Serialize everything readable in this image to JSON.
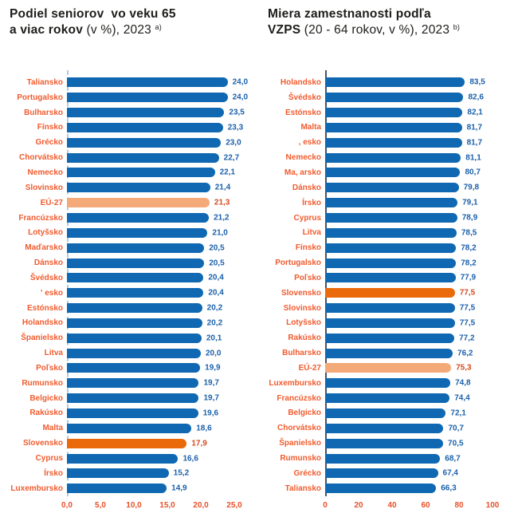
{
  "colors": {
    "bar_blue": "#0F68B1",
    "bar_eu": "#F4A978",
    "bar_sk": "#EA690B",
    "value_blue": "#1B60AA",
    "value_accent": "#D44A1F",
    "label_orange": "#F15B2E",
    "tick_orange": "#E8512B",
    "axis_line_left": "#AECBE8",
    "axis_line_right": "#44546A",
    "title_dark": "#1D1D1B"
  },
  "chart_data": [
    {
      "type": "bar",
      "orientation": "horizontal",
      "title": {
        "bold1": "Podiel seniorov  vo veku 65",
        "bold2": "a viac rokov",
        "normal": " (v %), 2023 ",
        "sup": "a)"
      },
      "title_text": "Podiel seniorov vo veku 65 a viac rokov (v %), 2023 a)",
      "xlim": [
        0,
        25
      ],
      "x_ticks": [
        "0,0",
        "5,0",
        "10,0",
        "15,0",
        "20,0",
        "25,0"
      ],
      "axis_line_style": "dashed",
      "legend": "none",
      "grid": "off",
      "rows": [
        {
          "label": "Taliansko",
          "value": 24.0,
          "display": "24,0",
          "type": "normal"
        },
        {
          "label": "Portugalsko",
          "value": 24.0,
          "display": "24,0",
          "type": "normal"
        },
        {
          "label": "Bulharsko",
          "value": 23.5,
          "display": "23,5",
          "type": "normal"
        },
        {
          "label": "Fínsko",
          "value": 23.3,
          "display": "23,3",
          "type": "normal"
        },
        {
          "label": "Grécko",
          "value": 23.0,
          "display": "23,0",
          "type": "normal"
        },
        {
          "label": "Chorvátsko",
          "value": 22.7,
          "display": "22,7",
          "type": "normal"
        },
        {
          "label": "Nemecko",
          "value": 22.1,
          "display": "22,1",
          "type": "normal"
        },
        {
          "label": "Slovinsko",
          "value": 21.4,
          "display": "21,4",
          "type": "normal"
        },
        {
          "label": "EÚ-27",
          "value": 21.3,
          "display": "21,3",
          "type": "eu"
        },
        {
          "label": "Francúzsko",
          "value": 21.2,
          "display": "21,2",
          "type": "normal"
        },
        {
          "label": "Lotyšsko",
          "value": 21.0,
          "display": "21,0",
          "type": "normal"
        },
        {
          "label": "Maďarsko",
          "value": 20.5,
          "display": "20,5",
          "type": "normal"
        },
        {
          "label": "Dánsko",
          "value": 20.5,
          "display": "20,5",
          "type": "normal"
        },
        {
          "label": "Švédsko",
          "value": 20.4,
          "display": "20,4",
          "type": "normal"
        },
        {
          "label": "' esko",
          "value": 20.4,
          "display": "20,4",
          "type": "normal"
        },
        {
          "label": "Estónsko",
          "value": 20.2,
          "display": "20,2",
          "type": "normal"
        },
        {
          "label": "Holandsko",
          "value": 20.2,
          "display": "20,2",
          "type": "normal"
        },
        {
          "label": "Španielsko",
          "value": 20.1,
          "display": "20,1",
          "type": "normal"
        },
        {
          "label": "Litva",
          "value": 20.0,
          "display": "20,0",
          "type": "normal"
        },
        {
          "label": "Poľsko",
          "value": 19.9,
          "display": "19,9",
          "type": "normal"
        },
        {
          "label": "Rumunsko",
          "value": 19.7,
          "display": "19,7",
          "type": "normal"
        },
        {
          "label": "Belgicko",
          "value": 19.7,
          "display": "19,7",
          "type": "normal"
        },
        {
          "label": "Rakúsko",
          "value": 19.6,
          "display": "19,6",
          "type": "normal"
        },
        {
          "label": "Malta",
          "value": 18.6,
          "display": "18,6",
          "type": "normal"
        },
        {
          "label": "Slovensko",
          "value": 17.9,
          "display": "17,9",
          "type": "sk"
        },
        {
          "label": "Cyprus",
          "value": 16.6,
          "display": "16,6",
          "type": "normal"
        },
        {
          "label": "Írsko",
          "value": 15.2,
          "display": "15,2",
          "type": "normal"
        },
        {
          "label": "Luxembursko",
          "value": 14.9,
          "display": "14,9",
          "type": "normal"
        }
      ]
    },
    {
      "type": "bar",
      "orientation": "horizontal",
      "title": {
        "bold1": "Miera zamestnanosti podľa",
        "bold2": "VZPS",
        "normal": " (20 - 64 rokov, v %), 2023 ",
        "sup": "b)"
      },
      "title_text": "Miera zamestnanosti podľa VZPS (20 - 64 rokov, v %), 2023 b)",
      "xlim": [
        0,
        100
      ],
      "x_ticks": [
        "0",
        "20",
        "40",
        "60",
        "80",
        "100"
      ],
      "axis_line_style": "solid",
      "legend": "none",
      "grid": "off",
      "rows": [
        {
          "label": "Holandsko",
          "value": 83.5,
          "display": "83,5",
          "type": "normal"
        },
        {
          "label": "Švédsko",
          "value": 82.6,
          "display": "82,6",
          "type": "normal"
        },
        {
          "label": "Estónsko",
          "value": 82.1,
          "display": "82,1",
          "type": "normal"
        },
        {
          "label": "Malta",
          "value": 81.7,
          "display": "81,7",
          "type": "normal"
        },
        {
          "label": ", esko",
          "value": 81.7,
          "display": "81,7",
          "type": "normal"
        },
        {
          "label": "Nemecko",
          "value": 81.1,
          "display": "81,1",
          "type": "normal"
        },
        {
          "label": "Ma, arsko",
          "value": 80.7,
          "display": "80,7",
          "type": "normal"
        },
        {
          "label": "Dánsko",
          "value": 79.8,
          "display": "79,8",
          "type": "normal"
        },
        {
          "label": "Írsko",
          "value": 79.1,
          "display": "79,1",
          "type": "normal"
        },
        {
          "label": "Cyprus",
          "value": 78.9,
          "display": "78,9",
          "type": "normal"
        },
        {
          "label": "Litva",
          "value": 78.5,
          "display": "78,5",
          "type": "normal"
        },
        {
          "label": "Fínsko",
          "value": 78.2,
          "display": "78,2",
          "type": "normal"
        },
        {
          "label": "Portugalsko",
          "value": 78.2,
          "display": "78,2",
          "type": "normal"
        },
        {
          "label": "Poľsko",
          "value": 77.9,
          "display": "77,9",
          "type": "normal"
        },
        {
          "label": "Slovensko",
          "value": 77.5,
          "display": "77,5",
          "type": "sk"
        },
        {
          "label": "Slovinsko",
          "value": 77.5,
          "display": "77,5",
          "type": "normal"
        },
        {
          "label": "Lotyšsko",
          "value": 77.5,
          "display": "77,5",
          "type": "normal"
        },
        {
          "label": "Rakúsko",
          "value": 77.2,
          "display": "77,2",
          "type": "normal"
        },
        {
          "label": "Bulharsko",
          "value": 76.2,
          "display": "76,2",
          "type": "normal"
        },
        {
          "label": "EÚ-27",
          "value": 75.3,
          "display": "75,3",
          "type": "eu"
        },
        {
          "label": "Luxembursko",
          "value": 74.8,
          "display": "74,8",
          "type": "normal"
        },
        {
          "label": "Francúzsko",
          "value": 74.4,
          "display": "74,4",
          "type": "normal"
        },
        {
          "label": "Belgicko",
          "value": 72.1,
          "display": "72,1",
          "type": "normal"
        },
        {
          "label": "Chorvátsko",
          "value": 70.7,
          "display": "70,7",
          "type": "normal"
        },
        {
          "label": "Španielsko",
          "value": 70.5,
          "display": "70,5",
          "type": "normal"
        },
        {
          "label": "Rumunsko",
          "value": 68.7,
          "display": "68,7",
          "type": "normal"
        },
        {
          "label": "Grécko",
          "value": 67.4,
          "display": "67,4",
          "type": "normal"
        },
        {
          "label": "Taliansko",
          "value": 66.3,
          "display": "66,3",
          "type": "normal"
        }
      ]
    }
  ]
}
